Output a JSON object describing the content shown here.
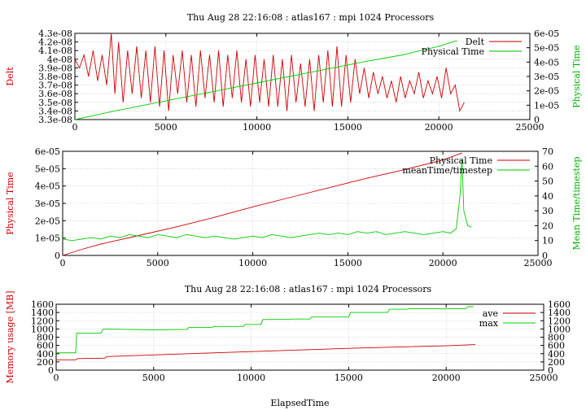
{
  "chart_data": [
    {
      "type": "line",
      "title": "Thu Aug 28 22:16:08 : atlas167 : mpi 1024 Processors",
      "xlabel": "",
      "ylabel": "Delt",
      "y2label": "Physical Time",
      "xlim": [
        0,
        25000
      ],
      "ylim": [
        3.3e-08,
        4.3e-08
      ],
      "y2lim": [
        0,
        6e-05
      ],
      "xticks": [
        "0",
        "5000",
        "10000",
        "15000",
        "20000",
        "25000"
      ],
      "yticks": [
        "3.3e-08",
        "3.4e-08",
        "3.5e-08",
        "3.6e-08",
        "3.7e-08",
        "3.8e-08",
        "3.9e-08",
        "4e-08",
        "4.1e-08",
        "4.2e-08",
        "4.3e-08"
      ],
      "y2ticks": [
        "0",
        "1e-05",
        "2e-05",
        "3e-05",
        "4e-05",
        "5e-05",
        "6e-05"
      ],
      "grid": true,
      "legend": "top-right",
      "series": [
        {
          "name": "Delt",
          "axis": "y",
          "color": "#cc0000",
          "x": [
            0,
            250,
            500,
            750,
            1000,
            1250,
            1500,
            1750,
            2000,
            2200,
            2400,
            2650,
            2900,
            3150,
            3400,
            3650,
            3900,
            4150,
            4400,
            4650,
            4900,
            5150,
            5400,
            5650,
            5900,
            6150,
            6400,
            6650,
            6900,
            7150,
            7400,
            7650,
            7900,
            8150,
            8400,
            8650,
            8900,
            9150,
            9400,
            9650,
            9900,
            10150,
            10400,
            10650,
            10900,
            11150,
            11400,
            11650,
            11900,
            12150,
            12400,
            12650,
            12900,
            13150,
            13400,
            13650,
            13900,
            14150,
            14400,
            14650,
            14900,
            15150,
            15400,
            15650,
            15900,
            16150,
            16400,
            16650,
            16900,
            17150,
            17400,
            17650,
            17900,
            18150,
            18400,
            18650,
            18900,
            19150,
            19400,
            19650,
            19900,
            20150,
            20400,
            20650,
            20900,
            21150,
            21400
          ],
          "y": [
            4e-08,
            3.9e-08,
            4.05e-08,
            3.8e-08,
            4.1e-08,
            3.75e-08,
            4.05e-08,
            3.7e-08,
            4.3e-08,
            3.6e-08,
            4.2e-08,
            3.5e-08,
            4.1e-08,
            3.6e-08,
            4.15e-08,
            3.55e-08,
            4.1e-08,
            3.5e-08,
            4.15e-08,
            3.45e-08,
            4.1e-08,
            3.4e-08,
            4.05e-08,
            3.6e-08,
            4.1e-08,
            3.5e-08,
            4.05e-08,
            3.45e-08,
            4.1e-08,
            3.55e-08,
            4.05e-08,
            3.5e-08,
            4.1e-08,
            3.45e-08,
            4.05e-08,
            3.55e-08,
            4.1e-08,
            3.5e-08,
            4e-08,
            3.45e-08,
            4.05e-08,
            3.5e-08,
            4e-08,
            3.45e-08,
            4.05e-08,
            3.45e-08,
            4e-08,
            3.4e-08,
            4.05e-08,
            3.5e-08,
            3.95e-08,
            3.45e-08,
            4e-08,
            3.4e-08,
            4.05e-08,
            3.5e-08,
            4.1e-08,
            3.45e-08,
            4.15e-08,
            3.45e-08,
            4.05e-08,
            3.5e-08,
            4e-08,
            3.6e-08,
            3.9e-08,
            3.55e-08,
            3.85e-08,
            3.6e-08,
            3.8e-08,
            3.55e-08,
            3.75e-08,
            3.5e-08,
            3.8e-08,
            3.55e-08,
            3.75e-08,
            3.6e-08,
            3.85e-08,
            3.55e-08,
            3.75e-08,
            3.6e-08,
            3.8e-08,
            3.55e-08,
            3.9e-08,
            3.6e-08,
            3.7e-08,
            3.4e-08,
            3.5e-08
          ]
        },
        {
          "name": "Physical Time",
          "axis": "y2",
          "color": "#00cc00",
          "x": [
            0,
            2000,
            4000,
            6000,
            8000,
            10000,
            12000,
            14000,
            16000,
            18000,
            20000,
            21000
          ],
          "y": [
            0,
            5.5e-06,
            1.05e-05,
            1.55e-05,
            2.05e-05,
            2.55e-05,
            3.05e-05,
            3.55e-05,
            4.05e-05,
            4.5e-05,
            5.1e-05,
            5.5e-05
          ]
        }
      ]
    },
    {
      "type": "line",
      "title": "",
      "xlabel": "",
      "ylabel": "Physical Time",
      "y2label": "Mean Time/timestep",
      "xlim": [
        0,
        25000
      ],
      "ylim": [
        0,
        6e-05
      ],
      "y2lim": [
        0,
        70
      ],
      "xticks": [
        "0",
        "5000",
        "10000",
        "15000",
        "20000",
        "25000"
      ],
      "yticks": [
        "0",
        "1e-05",
        "2e-05",
        "3e-05",
        "4e-05",
        "5e-05",
        "6e-05"
      ],
      "y2ticks": [
        "0",
        "10",
        "20",
        "30",
        "40",
        "50",
        "60",
        "70"
      ],
      "grid": true,
      "legend": "top-right",
      "series": [
        {
          "name": "Physical Time",
          "axis": "y",
          "color": "#cc0000",
          "x": [
            0,
            1000,
            2000,
            4000,
            6000,
            8000,
            10000,
            12000,
            14000,
            16000,
            18000,
            20000,
            21000
          ],
          "y": [
            0,
            3.5e-06,
            6.5e-06,
            1.15e-05,
            1.65e-05,
            2.2e-05,
            2.8e-05,
            3.35e-05,
            3.9e-05,
            4.45e-05,
            4.95e-05,
            5.5e-05,
            5.9e-05
          ]
        },
        {
          "name": "meanTime/timestep",
          "axis": "y2",
          "color": "#00cc00",
          "x": [
            0,
            500,
            1000,
            1500,
            2000,
            2500,
            3000,
            3500,
            4000,
            4500,
            5000,
            5500,
            6000,
            6500,
            7000,
            7500,
            8000,
            8500,
            9000,
            9500,
            10000,
            10500,
            11000,
            11500,
            12000,
            12500,
            13000,
            13500,
            14000,
            14500,
            15000,
            15500,
            16000,
            16500,
            17000,
            17500,
            18000,
            18500,
            19000,
            19500,
            20000,
            20400,
            20700,
            20900,
            21000,
            21100,
            21300,
            21500
          ],
          "y": [
            11,
            10,
            11,
            12,
            11,
            13,
            12,
            14,
            13,
            12,
            14,
            13,
            12,
            14,
            13,
            12,
            13,
            12,
            11,
            12,
            13,
            12,
            14,
            13,
            12,
            13,
            14,
            15,
            14,
            15,
            14,
            16,
            15,
            16,
            14,
            15,
            16,
            15,
            14,
            15,
            16,
            15,
            18,
            40,
            65,
            30,
            20,
            19
          ]
        }
      ]
    },
    {
      "type": "line",
      "title": "Thu Aug 28 22:16:08 : atlas167 : mpi 1024 Processors",
      "xlabel": "ElapsedTime",
      "ylabel": "Memory usage [MB]",
      "y2label": "",
      "xlim": [
        0,
        25000
      ],
      "ylim": [
        0,
        1600
      ],
      "y2lim": [
        0,
        1600
      ],
      "xticks": [
        "0",
        "5000",
        "10000",
        "15000",
        "20000",
        "25000"
      ],
      "yticks": [
        "0",
        "200",
        "400",
        "600",
        "800",
        "1000",
        "1200",
        "1400",
        "1600"
      ],
      "y2ticks": [
        "0",
        "200",
        "400",
        "600",
        "800",
        "1000",
        "1200",
        "1400",
        "1600"
      ],
      "grid": true,
      "legend": "top-right",
      "series": [
        {
          "name": "ave",
          "axis": "y",
          "color": "#cc0000",
          "x": [
            0,
            1000,
            1100,
            2500,
            2600,
            5000,
            7500,
            10000,
            12500,
            15000,
            17500,
            20000,
            21500
          ],
          "y": [
            250,
            250,
            280,
            290,
            330,
            370,
            410,
            450,
            490,
            530,
            560,
            590,
            620
          ]
        },
        {
          "name": "max",
          "axis": "y",
          "color": "#00cc00",
          "x": [
            0,
            1000,
            1050,
            2300,
            2400,
            5000,
            6700,
            6800,
            8000,
            8100,
            9600,
            9700,
            10500,
            10600,
            12000,
            12100,
            13000,
            13100,
            15000,
            15100,
            17000,
            17100,
            18000,
            18100,
            21000,
            21100,
            21400
          ],
          "y": [
            420,
            420,
            900,
            900,
            1000,
            980,
            990,
            1040,
            1040,
            1060,
            1060,
            1110,
            1110,
            1230,
            1230,
            1240,
            1240,
            1290,
            1290,
            1400,
            1400,
            1480,
            1480,
            1490,
            1490,
            1540,
            1540
          ]
        }
      ]
    }
  ]
}
